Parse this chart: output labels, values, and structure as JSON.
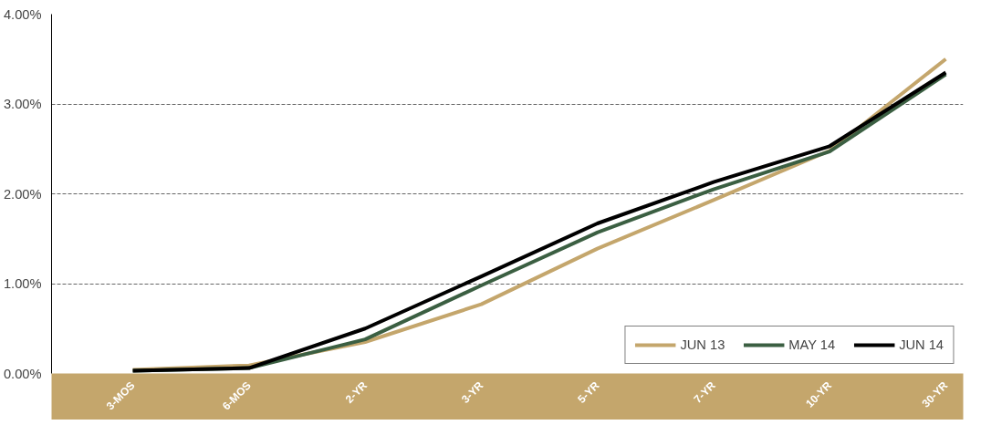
{
  "chart_data": {
    "type": "line",
    "categories": [
      "3-MOS",
      "6-MOS",
      "2-YR",
      "3-YR",
      "5-YR",
      "7-YR",
      "10-YR",
      "30-YR"
    ],
    "ylim": [
      0,
      4
    ],
    "yticks": [
      {
        "value": 0,
        "label": "0.00%"
      },
      {
        "value": 1,
        "label": "1.00%"
      },
      {
        "value": 2,
        "label": "2.00%"
      },
      {
        "value": 3,
        "label": "3.00%"
      },
      {
        "value": 4,
        "label": "4.00%"
      }
    ],
    "series": [
      {
        "name": "JUN 13",
        "color": "#c4a66c",
        "values": [
          0.04,
          0.09,
          0.35,
          0.77,
          1.39,
          1.93,
          2.48,
          3.5
        ]
      },
      {
        "name": "MAY 14",
        "color": "#3b5f42",
        "values": [
          0.03,
          0.06,
          0.38,
          0.98,
          1.57,
          2.05,
          2.47,
          3.33
        ]
      },
      {
        "name": "JUN 14",
        "color": "#000000",
        "values": [
          0.03,
          0.06,
          0.5,
          1.08,
          1.67,
          2.13,
          2.53,
          3.35
        ]
      }
    ],
    "grid": "y",
    "legend": "bottom right",
    "line_style": "solid",
    "marker": "none"
  }
}
